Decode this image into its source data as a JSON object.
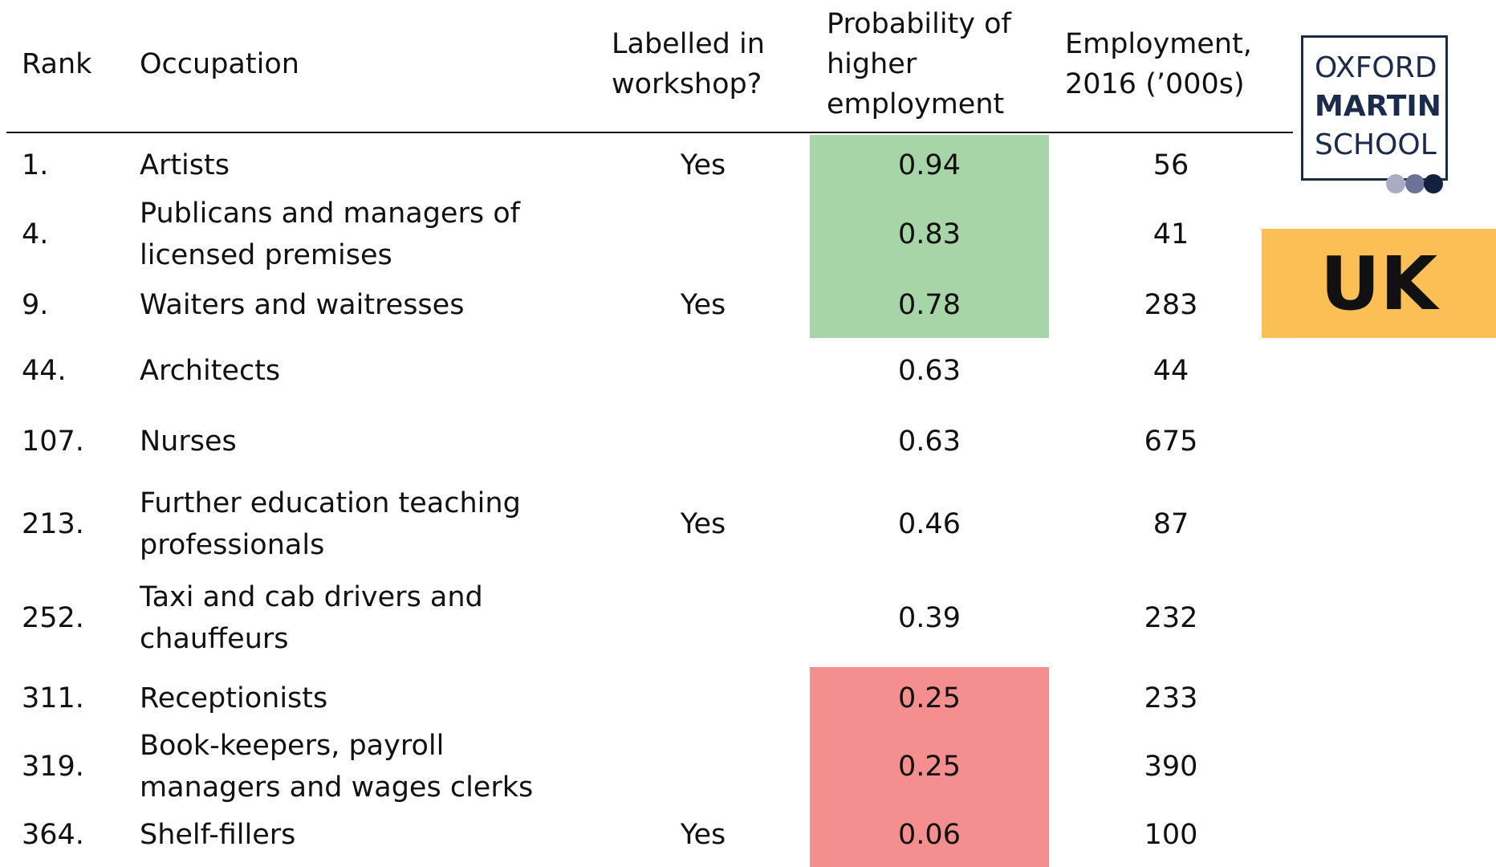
{
  "header": {
    "columns": [
      [
        "Rank"
      ],
      [
        "Occupation"
      ],
      [
        "Labelled in",
        "workshop?"
      ],
      [
        "Probability of",
        "higher",
        "employment"
      ],
      [
        "Employment,",
        "2016  (’000s)"
      ]
    ]
  },
  "table": {
    "rows": [
      {
        "rank": "1.",
        "occupation": [
          "Artists"
        ],
        "labelled": "Yes",
        "probability": 0.94,
        "employment": 56,
        "highlight": "#a8d5a8"
      },
      {
        "rank": "4.",
        "occupation": [
          "Publicans and managers of",
          "licensed premises"
        ],
        "probability": 0.83,
        "employment": 41,
        "highlight": "#a8d5a8"
      },
      {
        "rank": "9.",
        "occupation": [
          "Waiters and waitresses"
        ],
        "labelled": "Yes",
        "probability": 0.78,
        "employment": 283,
        "highlight": "#a8d5a8"
      },
      {
        "rank": "44.",
        "occupation": [
          "Architects"
        ],
        "probability": 0.63,
        "employment": 44
      },
      {
        "rank": "107.",
        "occupation": [
          "Nurses"
        ],
        "probability": 0.63,
        "employment": 675
      },
      {
        "rank": "213.",
        "occupation": [
          "Further education teaching",
          "professionals"
        ],
        "labelled": "Yes",
        "probability": 0.46,
        "employment": 87
      },
      {
        "rank": "252.",
        "occupation": [
          "Taxi and cab drivers and",
          "chauffeurs"
        ],
        "probability": 0.39,
        "employment": 232
      },
      {
        "rank": "311.",
        "occupation": [
          "Receptionists"
        ],
        "probability": 0.25,
        "employment": 233,
        "highlight": "#f58e8e"
      },
      {
        "rank": "319.",
        "occupation": [
          "Book-keepers, payroll",
          "managers and wages clerks"
        ],
        "probability": 0.25,
        "employment": 390,
        "highlight": "#f58e8e"
      },
      {
        "rank": "364.",
        "occupation": [
          "Shelf-fillers"
        ],
        "labelled": "Yes",
        "probability": 0.06,
        "employment": 100,
        "highlight": "#f58e8e"
      }
    ]
  },
  "logo": {
    "lines": [
      "OXFORD",
      "MARTIN",
      "SCHOOL"
    ]
  },
  "badge": {
    "label": "UK"
  }
}
